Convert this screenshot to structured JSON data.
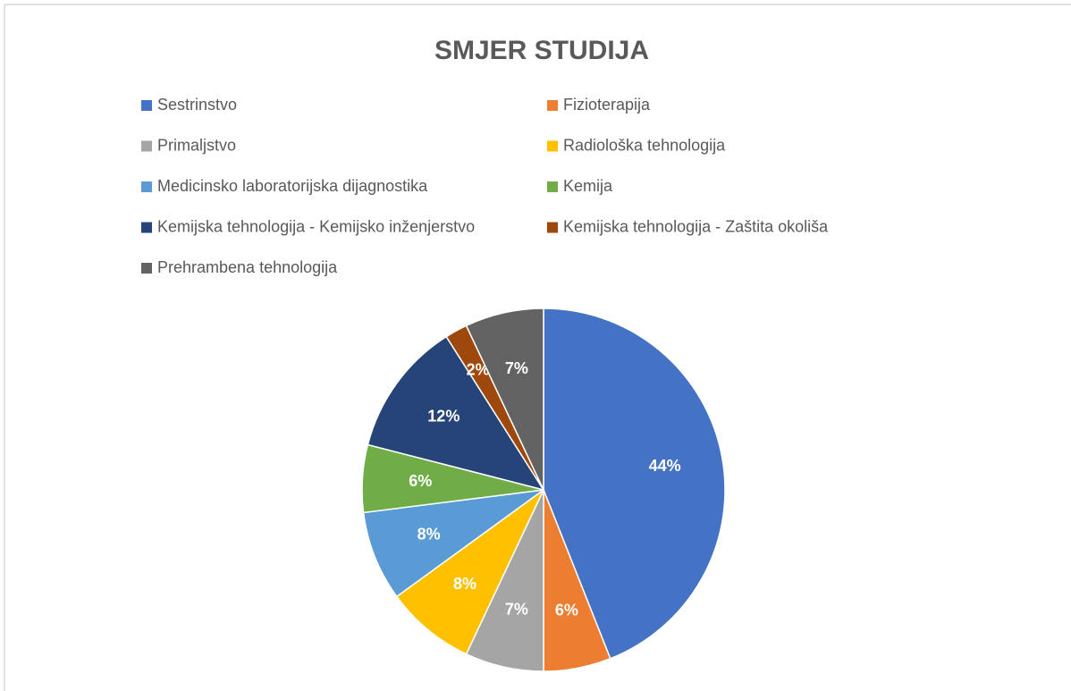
{
  "chart_data": {
    "type": "pie",
    "title": "SMJER STUDIJA",
    "categories": [
      "Sestrinstvo",
      "Fizioterapija",
      "Primaljstvo",
      "Radiološka tehnologija",
      "Medicinsko laboratorijska dijagnostika",
      "Kemija",
      "Kemijska tehnologija - Kemijsko inženjerstvo",
      "Kemijska tehnologija - Zaštita okoliša",
      "Prehrambena tehnologija"
    ],
    "values": [
      44,
      6,
      7,
      8,
      8,
      6,
      12,
      2,
      7
    ],
    "value_labels": [
      "44%",
      "6%",
      "7%",
      "8%",
      "8%",
      "6%",
      "12%",
      "2%",
      "7%"
    ],
    "colors": [
      "#4472c4",
      "#ed7d31",
      "#a5a5a5",
      "#ffc000",
      "#5b9bd5",
      "#70ad47",
      "#264478",
      "#9e480e",
      "#636363"
    ],
    "legend": "top"
  }
}
